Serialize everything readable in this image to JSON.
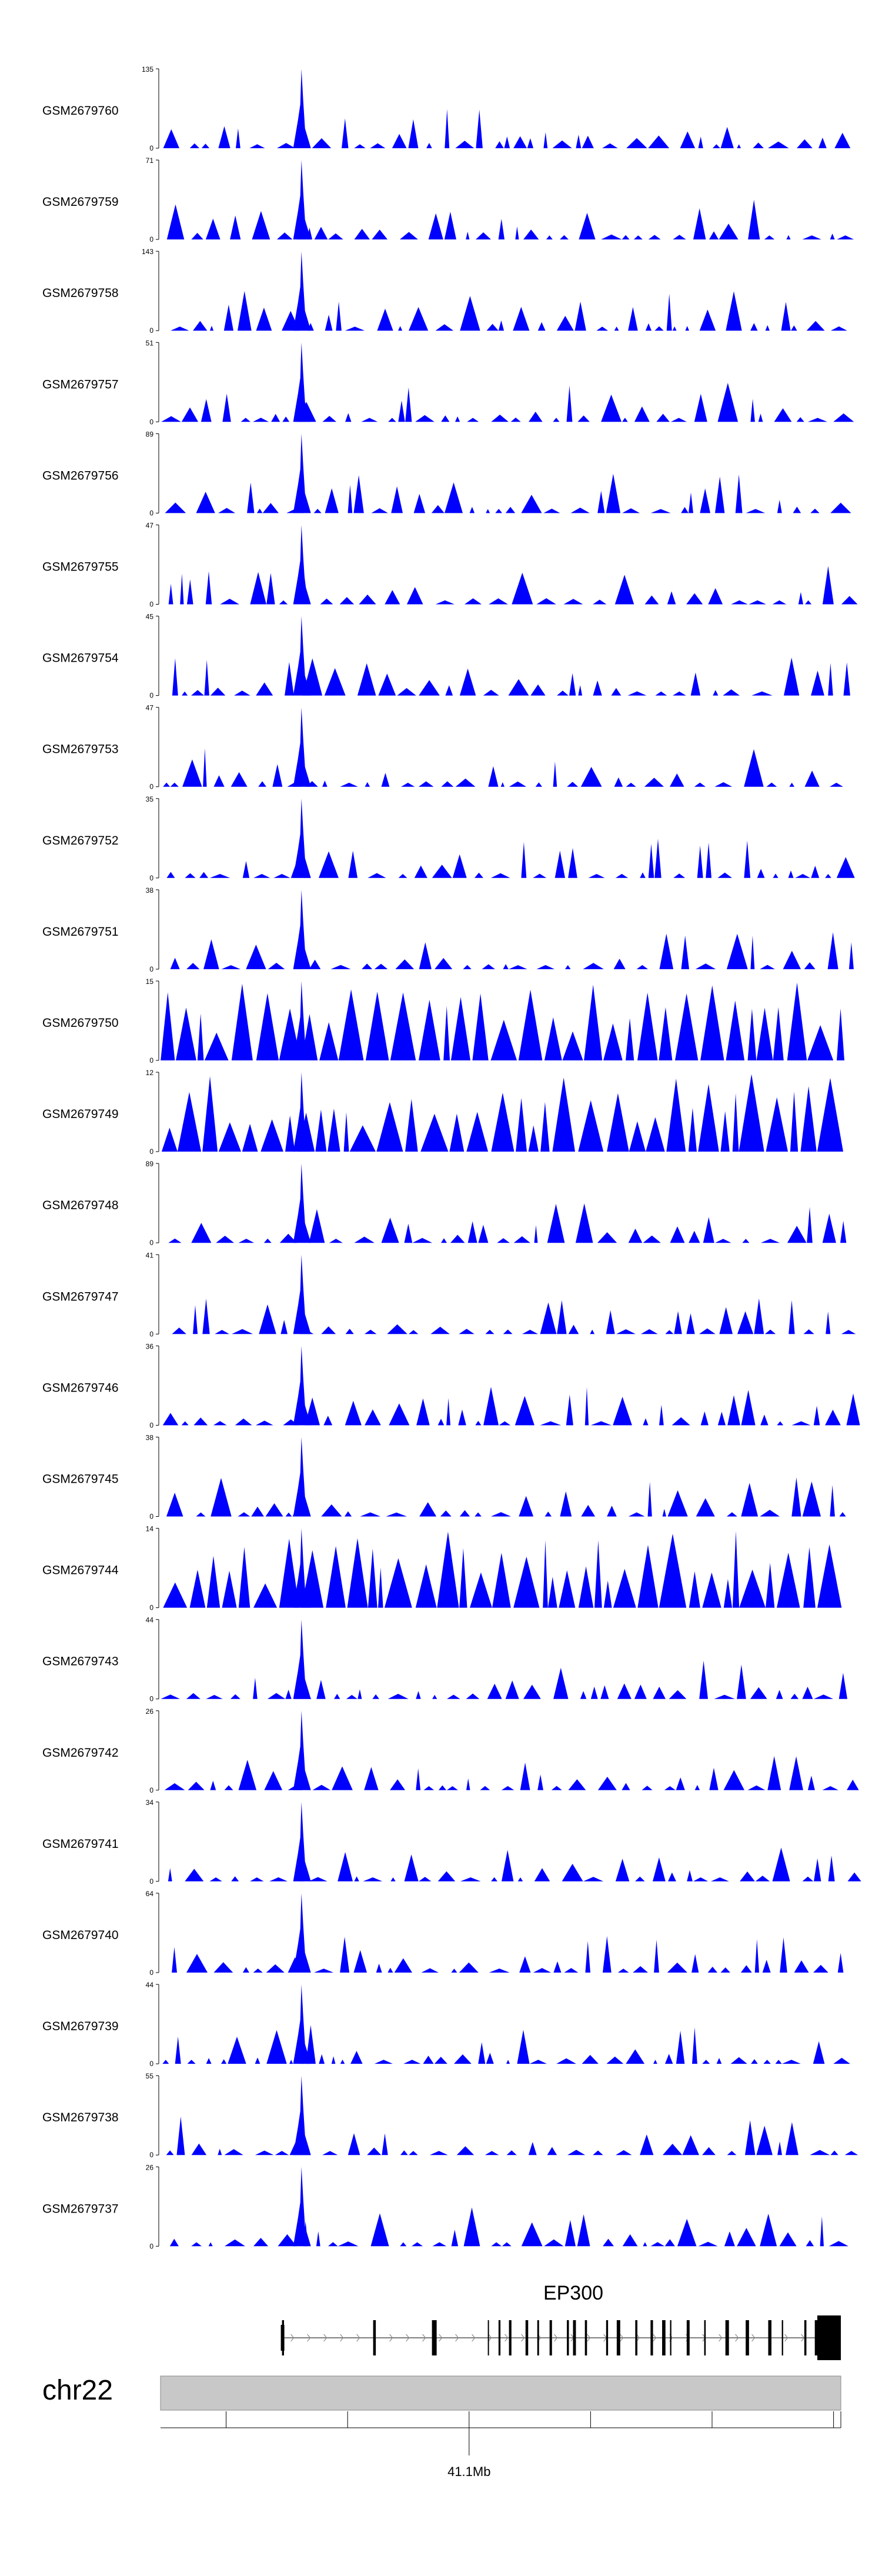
{
  "chart_data": {
    "type": "area",
    "title": "",
    "color": "#0000ff",
    "x_range_mb": [
      40.95,
      41.23
    ],
    "x_ticks_mb": [
      40.977,
      41.027,
      41.077,
      41.127,
      41.177,
      41.227
    ],
    "x_tick_labels": [
      "",
      "",
      "41.1Mb",
      "",
      "",
      ""
    ],
    "peak_x_mb": 41.008,
    "tracks": [
      {
        "name": "GSM2679760",
        "ymax": 135,
        "ymin": 0
      },
      {
        "name": "GSM2679759",
        "ymax": 71,
        "ymin": 0
      },
      {
        "name": "GSM2679758",
        "ymax": 143,
        "ymin": 0
      },
      {
        "name": "GSM2679757",
        "ymax": 51,
        "ymin": 0
      },
      {
        "name": "GSM2679756",
        "ymax": 89,
        "ymin": 0
      },
      {
        "name": "GSM2679755",
        "ymax": 47,
        "ymin": 0
      },
      {
        "name": "GSM2679754",
        "ymax": 45,
        "ymin": 0
      },
      {
        "name": "GSM2679753",
        "ymax": 47,
        "ymin": 0
      },
      {
        "name": "GSM2679752",
        "ymax": 35,
        "ymin": 0
      },
      {
        "name": "GSM2679751",
        "ymax": 38,
        "ymin": 0
      },
      {
        "name": "GSM2679750",
        "ymax": 15,
        "ymin": 0
      },
      {
        "name": "GSM2679749",
        "ymax": 12,
        "ymin": 0
      },
      {
        "name": "GSM2679748",
        "ymax": 89,
        "ymin": 0
      },
      {
        "name": "GSM2679747",
        "ymax": 41,
        "ymin": 0
      },
      {
        "name": "GSM2679746",
        "ymax": 36,
        "ymin": 0
      },
      {
        "name": "GSM2679745",
        "ymax": 38,
        "ymin": 0
      },
      {
        "name": "GSM2679744",
        "ymax": 14,
        "ymin": 0
      },
      {
        "name": "GSM2679743",
        "ymax": 44,
        "ymin": 0
      },
      {
        "name": "GSM2679742",
        "ymax": 26,
        "ymin": 0
      },
      {
        "name": "GSM2679741",
        "ymax": 34,
        "ymin": 0
      },
      {
        "name": "GSM2679740",
        "ymax": 64,
        "ymin": 0
      },
      {
        "name": "GSM2679739",
        "ymax": 44,
        "ymin": 0
      },
      {
        "name": "GSM2679738",
        "ymax": 55,
        "ymin": 0
      },
      {
        "name": "GSM2679737",
        "ymax": 26,
        "ymin": 0
      }
    ],
    "gene": {
      "name": "EP300",
      "strand": "+",
      "start_mb": 41.0,
      "end_mb": 41.23
    },
    "chromosome": "chr22"
  }
}
